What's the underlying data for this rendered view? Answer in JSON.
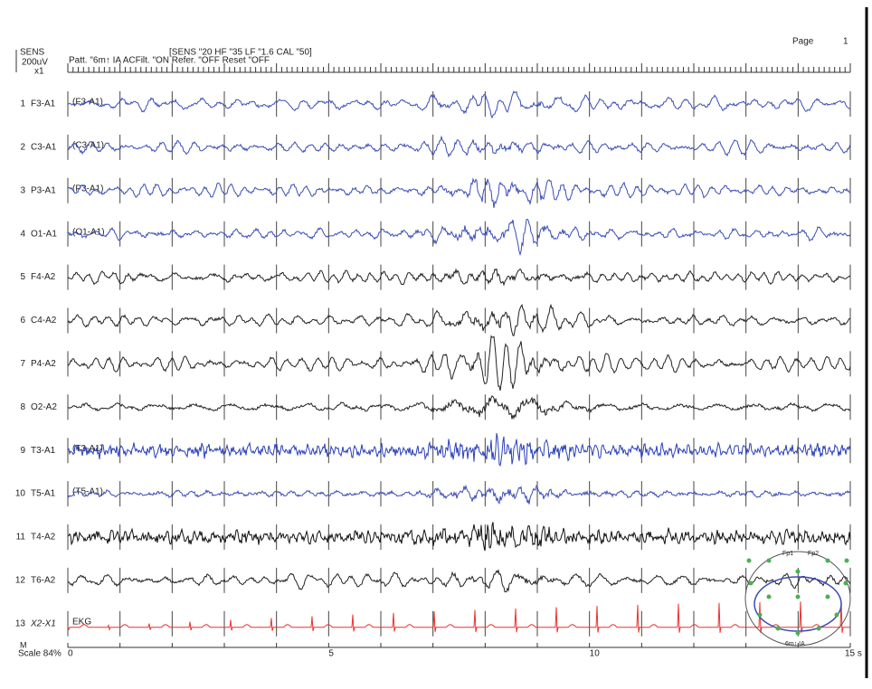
{
  "header": {
    "sens_label": "SENS",
    "sens_value": "200uV",
    "sens_mult": "x1",
    "settings": "[SENS \"20 HF \"35 LF \"1.6 CAL \"50]",
    "pattern": "Patt. \"6m↑ IA ACFilt. \"ON Refer. \"OFF Reset \"OFF",
    "page_label": "Page",
    "page_number": "1"
  },
  "channels": [
    {
      "number": "1",
      "label": "F3-A1",
      "inline_label": "(F3-A1)",
      "color": "#3b4db5"
    },
    {
      "number": "2",
      "label": "C3-A1",
      "inline_label": "(C3-A1)",
      "color": "#3b4db5"
    },
    {
      "number": "3",
      "label": "P3-A1",
      "inline_label": "(P3-A1)",
      "color": "#3b4db5"
    },
    {
      "number": "4",
      "label": "O1-A1",
      "inline_label": "(O1-A1)",
      "color": "#3b4db5"
    },
    {
      "number": "5",
      "label": "F4-A2",
      "color": "#222222"
    },
    {
      "number": "6",
      "label": "C4-A2",
      "color": "#222222"
    },
    {
      "number": "7",
      "label": "P4-A2",
      "color": "#222222"
    },
    {
      "number": "8",
      "label": "O2-A2",
      "color": "#222222"
    },
    {
      "number": "9",
      "label": "T3-A1",
      "inline_label": "(T3-A1)",
      "color": "#2a3fb8"
    },
    {
      "number": "10",
      "label": "T5-A1",
      "inline_label": "(T5-A1)",
      "color": "#3b4db5"
    },
    {
      "number": "11",
      "label": "T4-A2",
      "color": "#111111"
    },
    {
      "number": "12",
      "label": "T6-A2",
      "color": "#222222"
    },
    {
      "number": "13",
      "label": "X2-X1",
      "inline_label": "EKG",
      "color": "#e8322f"
    }
  ],
  "time_axis": {
    "labels": [
      "0",
      "5",
      "10",
      "15 s"
    ]
  },
  "footer": {
    "m": "M",
    "scale": "Scale 84%"
  },
  "head_map": {
    "left": "Fp1",
    "right": "Fp2",
    "caption": "6m↑ IA"
  }
}
